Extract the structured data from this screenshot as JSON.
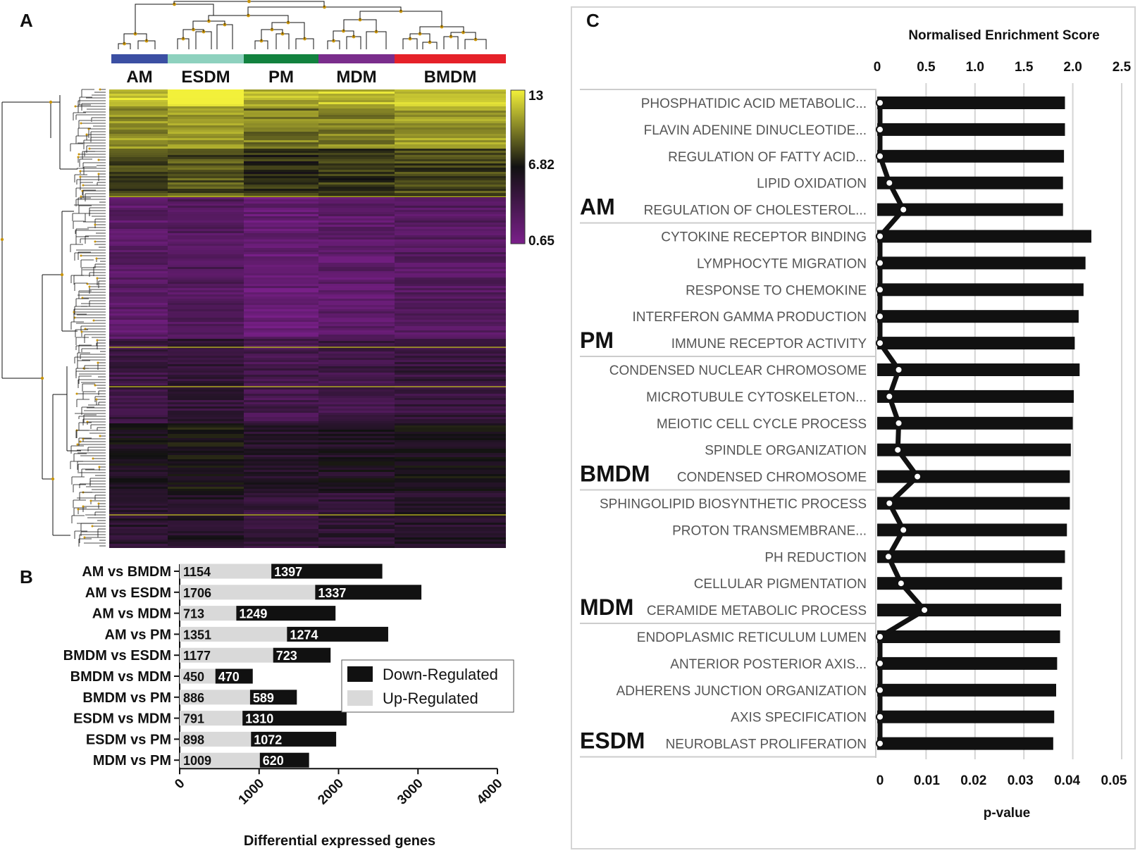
{
  "panels": {
    "a": "A",
    "b": "B",
    "c": "C"
  },
  "colors": {
    "AM": "#3b4fa3",
    "ESDM": "#8ed1be",
    "PM": "#12823f",
    "MDM": "#7a2d8c",
    "BMDM": "#e52129",
    "dendro": "#c8940a"
  },
  "chart_data": [
    {
      "type": "heatmap",
      "groups": [
        "AM",
        "ESDM",
        "PM",
        "MDM",
        "BMDM"
      ],
      "colorbar": {
        "max": "13",
        "mid": "6.82",
        "min": "0.65"
      },
      "color_stops": [
        "#f2f03a",
        "#111111",
        "#7a1f8a"
      ]
    },
    {
      "type": "bar",
      "orientation": "horizontal",
      "stacked": true,
      "categories": [
        "AM vs BMDM",
        "AM vs ESDM",
        "AM vs MDM",
        "AM vs PM",
        "BMDM vs ESDM",
        "BMDM vs MDM",
        "BMDM vs PM",
        "ESDM vs MDM",
        "ESDM vs PM",
        "MDM vs PM"
      ],
      "series": [
        {
          "name": "Up-Regulated",
          "color": "#d9d9d9",
          "values": [
            1154,
            1706,
            713,
            1351,
            1177,
            450,
            886,
            791,
            898,
            1009
          ]
        },
        {
          "name": "Down-Regulated",
          "color": "#111111",
          "values": [
            1397,
            1337,
            1249,
            1274,
            723,
            470,
            589,
            1310,
            1072,
            620
          ]
        }
      ],
      "value_labels": {
        "up": [
          "1154",
          "1706",
          "713",
          "1351",
          "1177",
          "450",
          "886",
          "791",
          "898",
          "1009"
        ],
        "down": [
          "1397",
          "1337",
          "1249",
          "1274",
          "723",
          "470",
          "589",
          "1310",
          "1072",
          "620"
        ]
      },
      "xlim": [
        0,
        4000
      ],
      "xticks": [
        "0",
        "1000",
        "2000",
        "3000",
        "4000"
      ],
      "xlabel": "Differential expressed genes",
      "legend": [
        "Down-Regulated",
        "Up-Regulated"
      ]
    },
    {
      "type": "bar",
      "orientation": "horizontal",
      "title": "Normalised Enrichment Score",
      "xlabel_bottom": "p-value",
      "nes_ticks": [
        "0",
        "0.5",
        "1.0",
        "1.5",
        "2.0",
        "2.5"
      ],
      "nes_lim": [
        0,
        2.5
      ],
      "p_ticks": [
        "0",
        "0.01",
        "0.02",
        "0.03",
        "0.04",
        "0.05"
      ],
      "p_lim": [
        0,
        0.05
      ],
      "groups": [
        {
          "name": "AM",
          "terms": [
            {
              "label": "PHOSPHATIDIC ACID METABOLIC...",
              "nes": 1.92,
              "p": 0
            },
            {
              "label": "FLAVIN ADENINE DINUCLEOTIDE...",
              "nes": 1.92,
              "p": 0
            },
            {
              "label": "REGULATION OF FATTY ACID...",
              "nes": 1.91,
              "p": 0
            },
            {
              "label": "LIPID OXIDATION",
              "nes": 1.9,
              "p": 0.002
            },
            {
              "label": "REGULATION OF CHOLESTEROL...",
              "nes": 1.9,
              "p": 0.005
            }
          ]
        },
        {
          "name": "PM",
          "terms": [
            {
              "label": "CYTOKINE RECEPTOR BINDING",
              "nes": 2.19,
              "p": 0
            },
            {
              "label": "LYMPHOCYTE MIGRATION",
              "nes": 2.13,
              "p": 0
            },
            {
              "label": "RESPONSE TO CHEMOKINE",
              "nes": 2.11,
              "p": 0
            },
            {
              "label": "INTERFERON GAMMA PRODUCTION",
              "nes": 2.06,
              "p": 0
            },
            {
              "label": "IMMUNE RECEPTOR ACTIVITY",
              "nes": 2.02,
              "p": 0
            }
          ]
        },
        {
          "name": "BMDM",
          "terms": [
            {
              "label": "CONDENSED NUCLEAR CHROMOSOME",
              "nes": 2.07,
              "p": 0.004
            },
            {
              "label": "MICROTUBULE CYTOSKELETON...",
              "nes": 2.01,
              "p": 0.002
            },
            {
              "label": "MEIOTIC CELL CYCLE PROCESS",
              "nes": 2.0,
              "p": 0.004
            },
            {
              "label": "SPINDLE ORGANIZATION",
              "nes": 1.98,
              "p": 0.0038
            },
            {
              "label": "CONDENSED CHROMOSOME",
              "nes": 1.97,
              "p": 0.008
            }
          ]
        },
        {
          "name": "MDM",
          "terms": [
            {
              "label": "SPHINGOLIPID BIOSYNTHETIC PROCESS",
              "nes": 1.97,
              "p": 0.002
            },
            {
              "label": "PROTON TRANSMEMBRANE...",
              "nes": 1.94,
              "p": 0.005
            },
            {
              "label": "PH REDUCTION",
              "nes": 1.92,
              "p": 0.0018
            },
            {
              "label": "CELLULAR PIGMENTATION",
              "nes": 1.89,
              "p": 0.0045
            },
            {
              "label": "CERAMIDE METABOLIC PROCESS",
              "nes": 1.88,
              "p": 0.0095
            }
          ]
        },
        {
          "name": "ESDM",
          "terms": [
            {
              "label": "ENDOPLASMIC RETICULUM LUMEN",
              "nes": 1.87,
              "p": 0
            },
            {
              "label": "ANTERIOR POSTERIOR AXIS...",
              "nes": 1.84,
              "p": 0
            },
            {
              "label": "ADHERENS JUNCTION ORGANIZATION",
              "nes": 1.83,
              "p": 0
            },
            {
              "label": "AXIS SPECIFICATION",
              "nes": 1.81,
              "p": 0
            },
            {
              "label": "NEUROBLAST PROLIFERATION",
              "nes": 1.8,
              "p": 0
            }
          ]
        }
      ]
    }
  ]
}
